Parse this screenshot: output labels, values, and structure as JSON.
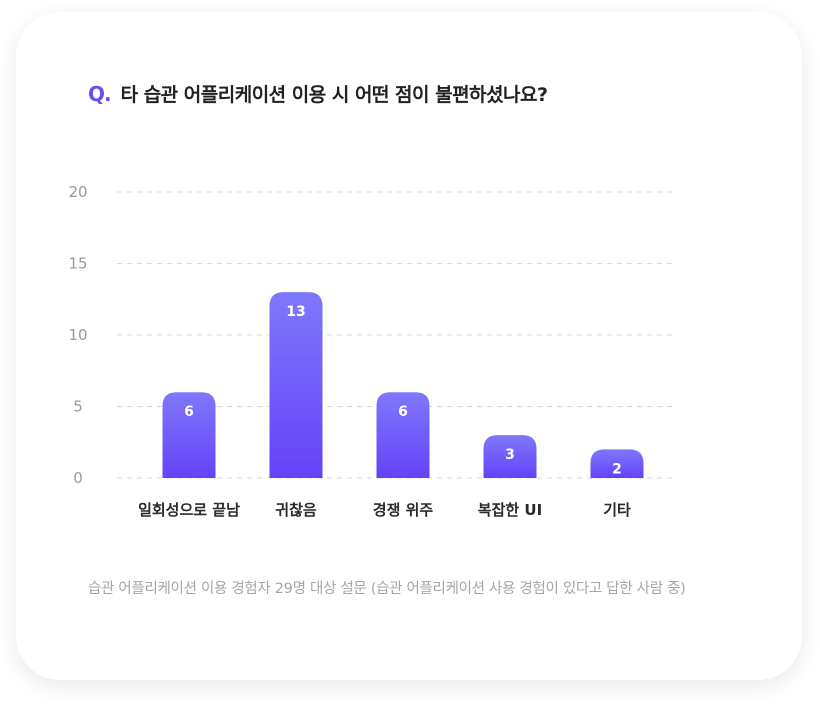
{
  "question": {
    "marker": "Q.",
    "text": "타 습관 어플리케이션 이용 시 어떤 점이 불편하셨나요?"
  },
  "footnote": "습관 어플리케이션 이용 경험자 29명 대상 설문 (습관 어플리케이션 사용 경험이 있다고 답한 사람 중)",
  "colors": {
    "accent": "#6a4cf5",
    "bar_top": "#7f78fb",
    "bar_bottom": "#6542f8",
    "grid": "#d9d9d9"
  },
  "chart_data": {
    "type": "bar",
    "categories": [
      "일회성으로 끝남",
      "귀찮음",
      "경쟁 위주",
      "복잡한 UI",
      "기타"
    ],
    "values": [
      6,
      13,
      6,
      3,
      2
    ],
    "yticks": [
      0,
      5,
      10,
      15,
      20
    ],
    "ylim": [
      0,
      20
    ],
    "grid": true,
    "data_labels": true
  }
}
